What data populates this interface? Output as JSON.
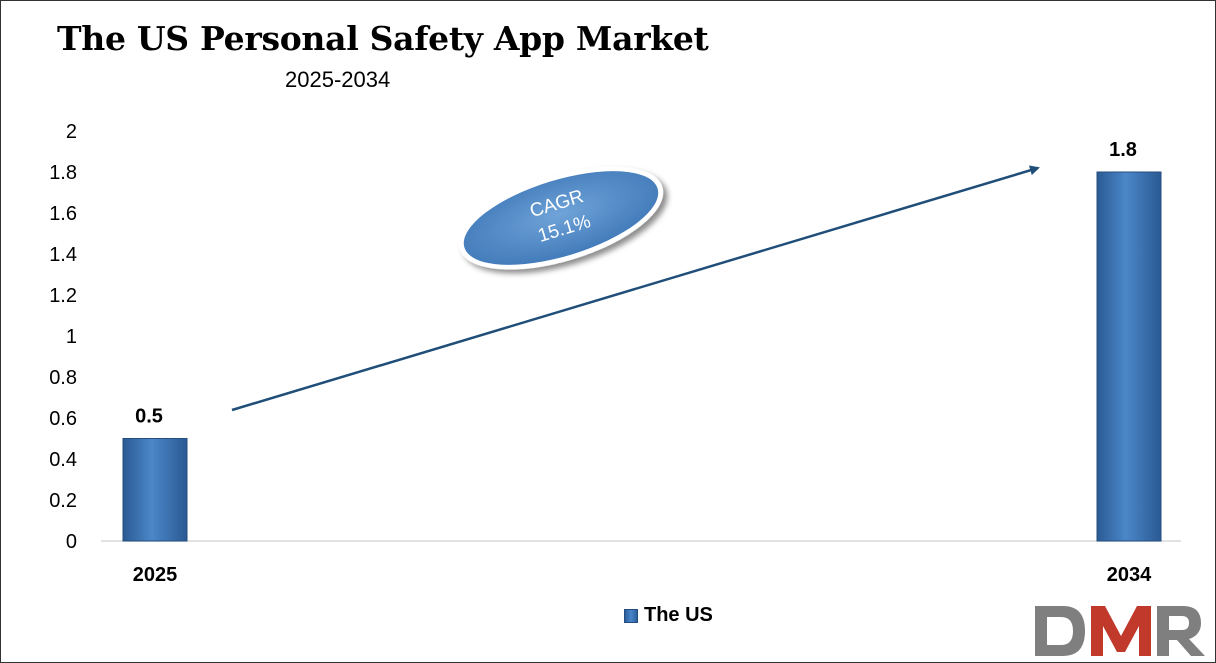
{
  "title": "The US Personal Safety App Market",
  "subtitle": "2025-2034",
  "cagr": {
    "label": "CAGR",
    "value": "15.1%"
  },
  "legend": {
    "series_name": "The US"
  },
  "logo": {
    "text": "DMR"
  },
  "colors": {
    "bar": "#3b78bd",
    "bar_dark": "#2a5a93",
    "arrow": "#1f4e79",
    "ellipse": "#5b93cf",
    "logo_grey": "#7f7f7f",
    "logo_red": "#c0392b"
  },
  "chart_data": {
    "type": "bar",
    "categories": [
      "2025",
      "2034"
    ],
    "series": [
      {
        "name": "The US",
        "values": [
          0.5,
          1.8
        ]
      }
    ],
    "data_labels": [
      "0.5",
      "1.8"
    ],
    "ylim": [
      0,
      2
    ],
    "yticks": [
      "0",
      "0.2",
      "0.4",
      "0.6",
      "0.8",
      "1",
      "1.2",
      "1.4",
      "1.6",
      "1.8",
      "2"
    ],
    "grid": false,
    "legend_position": "bottom"
  }
}
